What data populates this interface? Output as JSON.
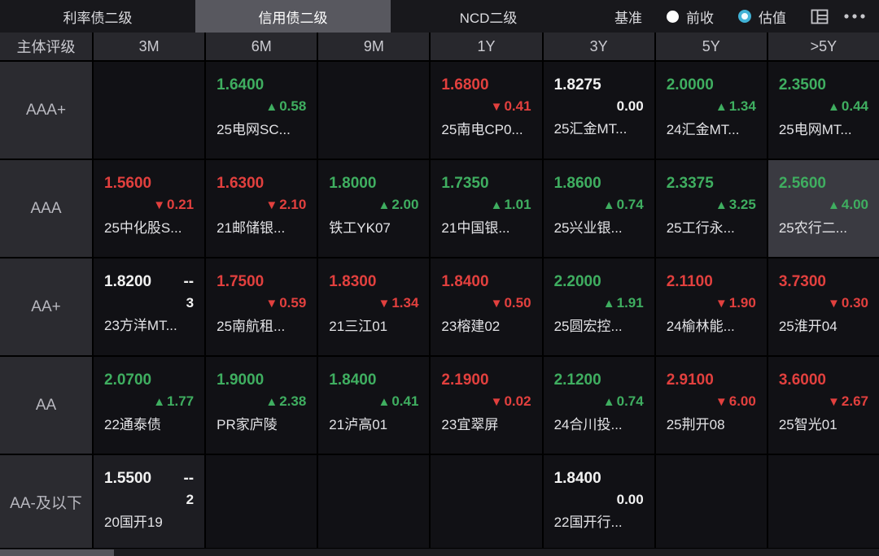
{
  "topbar": {
    "tabs": [
      {
        "label": "利率债二级",
        "selected": false
      },
      {
        "label": "信用债二级",
        "selected": true
      },
      {
        "label": "NCD二级",
        "selected": false
      }
    ],
    "benchmark_label": "基准",
    "radios": [
      {
        "label": "前收",
        "selected": false,
        "style": "white-filled"
      },
      {
        "label": "估值",
        "selected": true,
        "style": "cyan-ring"
      }
    ],
    "icons": [
      "layout-columns-icon",
      "more-icon"
    ]
  },
  "glyphs": {
    "up": "▲",
    "down": "▼"
  },
  "colors": {
    "up": "#3fae60",
    "down": "#e2403e",
    "neutral": "#f2f2f2",
    "accent": "#41b2d6",
    "selected_tab_bg": "#58585f",
    "cell_bg": "#111115",
    "header_bg": "#28282d",
    "highlight_cell_bg": "#3a3a41"
  },
  "table": {
    "corner_label": "主体评级",
    "columns": [
      "3M",
      "6M",
      "9M",
      "1Y",
      "3Y",
      "5Y",
      ">5Y"
    ],
    "rows": [
      {
        "rating": "AAA+",
        "cells": [
          null,
          {
            "value": "1.6400",
            "direction": "up",
            "change": "0.58",
            "name": "25电网SC..."
          },
          null,
          {
            "value": "1.6800",
            "direction": "down",
            "change": "0.41",
            "name": "25南电CP0..."
          },
          {
            "value": "1.8275",
            "direction": "flat",
            "change": "0.00",
            "name": "25汇金MT..."
          },
          {
            "value": "2.0000",
            "direction": "up",
            "change": "1.34",
            "name": "24汇金MT..."
          },
          {
            "value": "2.3500",
            "direction": "up",
            "change": "0.44",
            "name": "25电网MT..."
          }
        ]
      },
      {
        "rating": "AAA",
        "cells": [
          {
            "value": "1.5600",
            "direction": "down",
            "change": "0.21",
            "name": "25中化股S..."
          },
          {
            "value": "1.6300",
            "direction": "down",
            "change": "2.10",
            "name": "21邮储银..."
          },
          {
            "value": "1.8000",
            "direction": "up",
            "change": "2.00",
            "name": "铁工YK07"
          },
          {
            "value": "1.7350",
            "direction": "up",
            "change": "1.01",
            "name": "21中国银..."
          },
          {
            "value": "1.8600",
            "direction": "up",
            "change": "0.74",
            "name": "25兴业银..."
          },
          {
            "value": "2.3375",
            "direction": "up",
            "change": "3.25",
            "name": "25工行永..."
          },
          {
            "value": "2.5600",
            "direction": "up",
            "change": "4.00",
            "name": "25农行二...",
            "highlight": true
          }
        ]
      },
      {
        "rating": "AA+",
        "cells": [
          {
            "value": "1.8200",
            "direction": "flat",
            "dash": "--",
            "count": "3",
            "name": "23方洋MT..."
          },
          {
            "value": "1.7500",
            "direction": "down",
            "change": "0.59",
            "name": "25南航租..."
          },
          {
            "value": "1.8300",
            "direction": "down",
            "change": "1.34",
            "name": "21三江01"
          },
          {
            "value": "1.8400",
            "direction": "down",
            "change": "0.50",
            "name": "23榕建02"
          },
          {
            "value": "2.2000",
            "direction": "up",
            "change": "1.91",
            "name": "25圆宏控..."
          },
          {
            "value": "2.1100",
            "direction": "down",
            "change": "1.90",
            "name": "24榆林能..."
          },
          {
            "value": "3.7300",
            "direction": "down",
            "change": "0.30",
            "name": "25淮开04"
          }
        ]
      },
      {
        "rating": "AA",
        "cells": [
          {
            "value": "2.0700",
            "direction": "up",
            "change": "1.77",
            "name": "22通泰债"
          },
          {
            "value": "1.9000",
            "direction": "up",
            "change": "2.38",
            "name": "PR家庐陵"
          },
          {
            "value": "1.8400",
            "direction": "up",
            "change": "0.41",
            "name": "21泸高01"
          },
          {
            "value": "2.1900",
            "direction": "down",
            "change": "0.02",
            "name": "23宜翠屏"
          },
          {
            "value": "2.1200",
            "direction": "up",
            "change": "0.74",
            "name": "24合川投..."
          },
          {
            "value": "2.9100",
            "direction": "down",
            "change": "6.00",
            "name": "25荆开08"
          },
          {
            "value": "3.6000",
            "direction": "down",
            "change": "2.67",
            "name": "25智光01"
          }
        ]
      },
      {
        "rating": "AA-及以下",
        "cells": [
          {
            "value": "1.5500",
            "direction": "flat",
            "dash": "--",
            "count": "2",
            "name": "20国开19",
            "soft_highlight": true
          },
          null,
          null,
          null,
          {
            "value": "1.8400",
            "direction": "flat",
            "change": "0.00",
            "name": "22国开行..."
          },
          null,
          null
        ]
      }
    ]
  }
}
